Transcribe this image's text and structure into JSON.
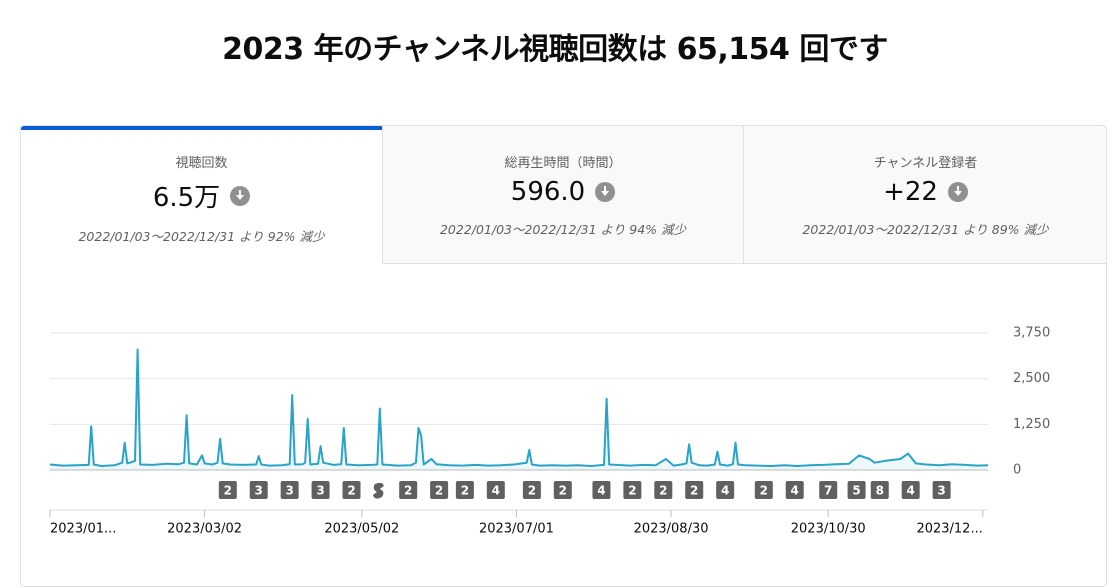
{
  "header": {
    "title": "2023 年のチャンネル視聴回数は 65,154 回です"
  },
  "tabs": [
    {
      "label": "視聴回数",
      "value": "6.5万",
      "comparison": "2022/01/03～2022/12/31 より 92% 減少"
    },
    {
      "label": "総再生時間（時間）",
      "value": "596.0",
      "comparison": "2022/01/03～2022/12/31 より 94% 減少"
    },
    {
      "label": "チャンネル登録者",
      "value": "+22",
      "comparison": "2022/01/03～2022/12/31 より 89% 減少"
    }
  ],
  "chart_data": {
    "type": "line",
    "color": "#2aa3c8",
    "x": [
      0,
      5,
      10,
      15,
      16,
      17,
      20,
      25,
      28,
      29,
      30,
      33,
      34,
      35,
      40,
      45,
      50,
      52,
      53,
      54,
      57,
      59,
      60,
      63,
      65,
      66,
      67,
      70,
      75,
      80,
      81,
      82,
      85,
      90,
      93,
      94,
      95,
      98,
      99,
      100,
      101,
      104,
      105,
      106,
      110,
      113,
      114,
      115,
      120,
      125,
      127,
      128,
      129,
      135,
      140,
      142,
      143,
      144,
      145,
      148,
      150,
      155,
      160,
      165,
      170,
      175,
      180,
      185,
      186,
      187,
      190,
      195,
      200,
      205,
      210,
      215,
      216,
      217,
      220,
      225,
      230,
      235,
      239,
      242,
      245,
      247,
      248,
      249,
      252,
      255,
      258,
      259,
      260,
      263,
      265,
      266,
      267,
      270,
      275,
      280,
      285,
      290,
      295,
      300,
      305,
      310,
      314,
      318,
      320,
      325,
      330,
      333,
      336,
      340,
      345,
      350,
      355,
      360,
      364
    ],
    "values": [
      150,
      120,
      130,
      140,
      1200,
      150,
      110,
      130,
      200,
      750,
      180,
      250,
      3300,
      150,
      140,
      170,
      160,
      200,
      1500,
      180,
      150,
      400,
      180,
      150,
      200,
      850,
      180,
      150,
      140,
      150,
      380,
      150,
      120,
      130,
      160,
      2050,
      150,
      160,
      200,
      1400,
      150,
      170,
      650,
      200,
      140,
      160,
      1150,
      150,
      130,
      140,
      150,
      1680,
      150,
      120,
      130,
      200,
      1150,
      950,
      150,
      300,
      160,
      130,
      120,
      140,
      120,
      130,
      150,
      200,
      550,
      150,
      120,
      130,
      120,
      130,
      110,
      140,
      1950,
      150,
      140,
      120,
      140,
      130,
      300,
      120,
      150,
      180,
      700,
      200,
      130,
      120,
      150,
      500,
      150,
      120,
      160,
      750,
      150,
      130,
      120,
      110,
      130,
      110,
      130,
      140,
      160,
      170,
      400,
      300,
      200,
      260,
      300,
      450,
      180,
      150,
      130,
      160,
      140,
      120,
      130
    ],
    "xlim": [
      0,
      364
    ],
    "xticks": [
      {
        "value": 0,
        "label": "2023/01..."
      },
      {
        "value": 60,
        "label": "2023/03/02"
      },
      {
        "value": 121,
        "label": "2023/05/02"
      },
      {
        "value": 181,
        "label": "2023/07/01"
      },
      {
        "value": 241,
        "label": "2023/08/30"
      },
      {
        "value": 302,
        "label": "2023/10/30"
      },
      {
        "value": 362,
        "label": "2023/12..."
      }
    ],
    "ylim": [
      0,
      3750
    ],
    "yticks": [
      0,
      {
        "value": 1250,
        "label": "1,250"
      },
      {
        "value": 2500,
        "label": "2,500"
      },
      {
        "value": 3750,
        "label": "3,750"
      }
    ],
    "grid": true,
    "markers": [
      {
        "day": 69,
        "label": "2"
      },
      {
        "day": 81,
        "label": "3"
      },
      {
        "day": 93,
        "label": "3"
      },
      {
        "day": 105,
        "label": "3"
      },
      {
        "day": 117,
        "label": "2"
      },
      {
        "day": 128,
        "label": null
      },
      {
        "day": 139,
        "label": "2"
      },
      {
        "day": 151,
        "label": "2"
      },
      {
        "day": 161,
        "label": "2"
      },
      {
        "day": 173,
        "label": "4"
      },
      {
        "day": 187,
        "label": "2"
      },
      {
        "day": 199,
        "label": "2"
      },
      {
        "day": 214,
        "label": "4"
      },
      {
        "day": 226,
        "label": "2"
      },
      {
        "day": 238,
        "label": "2"
      },
      {
        "day": 250,
        "label": "2"
      },
      {
        "day": 262,
        "label": "4"
      },
      {
        "day": 277,
        "label": "2"
      },
      {
        "day": 289,
        "label": "4"
      },
      {
        "day": 302,
        "label": "7"
      },
      {
        "day": 313,
        "label": "5"
      },
      {
        "day": 322,
        "label": "8"
      },
      {
        "day": 334,
        "label": "4"
      },
      {
        "day": 346,
        "label": "3"
      }
    ]
  }
}
